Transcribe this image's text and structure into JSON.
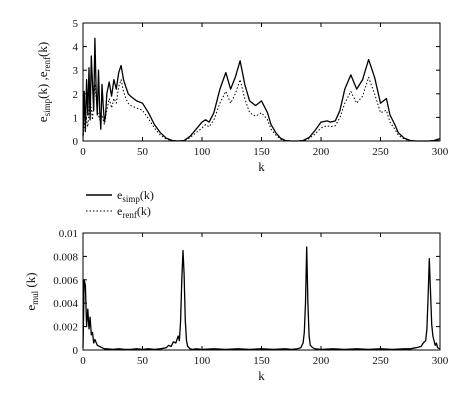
{
  "chart_data": [
    {
      "type": "line",
      "xlabel": "k",
      "ylabel": {
        "base1": "e",
        "sub1": "simp",
        "mid": "(k) ,e",
        "sub2": "renf",
        "end": "(k)"
      },
      "xlim": [
        0,
        300
      ],
      "ylim": [
        0,
        5
      ],
      "xticks": [
        "0",
        "50",
        "100",
        "150",
        "200",
        "250",
        "300"
      ],
      "yticks": [
        "0",
        "1",
        "2",
        "3",
        "4",
        "5"
      ],
      "legend": {
        "placement": "below",
        "entries": [
          {
            "base": "e",
            "sub": "simp",
            "end": "(k)",
            "style": "solid"
          },
          {
            "base": "e",
            "sub": "renf",
            "end": "(k)",
            "style": "dotted"
          }
        ]
      },
      "series": [
        {
          "style": "solid",
          "x": [
            0,
            1,
            2,
            3,
            4,
            5,
            6,
            7,
            8,
            9,
            10,
            11,
            12,
            13,
            14,
            15,
            16,
            17,
            18,
            19,
            20,
            22,
            24,
            26,
            28,
            30,
            32,
            34,
            36,
            38,
            40,
            45,
            50,
            55,
            60,
            65,
            70,
            75,
            80,
            85,
            90,
            95,
            100,
            103,
            106,
            110,
            115,
            120,
            124,
            128,
            132,
            136,
            140,
            145,
            150,
            155,
            158,
            162,
            166,
            170,
            175,
            180,
            185,
            190,
            195,
            200,
            205,
            208,
            212,
            216,
            220,
            225,
            230,
            235,
            240,
            245,
            250,
            255,
            258,
            262,
            265,
            270,
            275,
            280,
            285,
            290,
            295,
            300
          ],
          "y": [
            0.2,
            2.1,
            0.4,
            2.6,
            1.1,
            3.1,
            0.9,
            3.6,
            2.4,
            1.3,
            4.35,
            2.2,
            1.1,
            3.0,
            1.3,
            0.5,
            2.4,
            1.5,
            0.8,
            1.1,
            2.0,
            2.5,
            1.9,
            2.6,
            2.2,
            2.9,
            3.2,
            2.6,
            2.3,
            2.0,
            1.9,
            1.7,
            1.6,
            1.2,
            0.7,
            0.35,
            0.12,
            0.02,
            0.0,
            0.02,
            0.2,
            0.5,
            0.8,
            0.9,
            0.8,
            1.2,
            2.2,
            2.9,
            2.2,
            2.7,
            3.4,
            2.4,
            1.7,
            1.5,
            1.7,
            1.2,
            0.7,
            0.35,
            0.12,
            0.02,
            0.0,
            0.0,
            0.02,
            0.15,
            0.45,
            0.8,
            0.85,
            0.8,
            0.85,
            1.3,
            2.2,
            2.8,
            2.2,
            2.6,
            3.45,
            2.7,
            1.6,
            1.8,
            1.1,
            0.7,
            0.35,
            0.12,
            0.02,
            0.0,
            0.0,
            0.0,
            0.02,
            0.1
          ]
        },
        {
          "style": "dotted",
          "x": [
            0,
            2,
            4,
            6,
            8,
            10,
            12,
            14,
            16,
            18,
            20,
            22,
            24,
            26,
            28,
            30,
            32,
            34,
            36,
            38,
            40,
            45,
            50,
            55,
            60,
            65,
            70,
            75,
            80,
            85,
            90,
            95,
            100,
            103,
            106,
            110,
            115,
            120,
            124,
            128,
            132,
            136,
            140,
            145,
            150,
            155,
            158,
            162,
            166,
            170,
            175,
            180,
            185,
            190,
            195,
            200,
            205,
            208,
            212,
            216,
            220,
            225,
            230,
            235,
            240,
            245,
            250,
            255,
            258,
            262,
            265,
            270,
            275,
            280,
            285,
            290,
            295,
            300
          ],
          "y": [
            0.1,
            1.2,
            0.6,
            1.8,
            0.9,
            2.4,
            1.3,
            0.9,
            1.1,
            0.7,
            1.3,
            1.8,
            1.4,
            1.8,
            1.6,
            2.3,
            2.6,
            2.1,
            1.8,
            1.6,
            1.5,
            1.4,
            1.3,
            0.95,
            0.55,
            0.25,
            0.08,
            0.01,
            0.0,
            0.01,
            0.15,
            0.35,
            0.55,
            0.7,
            0.6,
            0.9,
            1.6,
            2.1,
            1.6,
            2.0,
            2.6,
            1.8,
            1.2,
            1.05,
            1.2,
            0.9,
            0.5,
            0.25,
            0.08,
            0.01,
            0.0,
            0.0,
            0.01,
            0.1,
            0.3,
            0.55,
            0.65,
            0.6,
            0.65,
            1.0,
            1.6,
            2.1,
            1.6,
            1.9,
            2.7,
            2.0,
            1.2,
            1.3,
            0.8,
            0.5,
            0.25,
            0.08,
            0.01,
            0.0,
            0.0,
            0.0,
            0.01,
            0.05
          ]
        }
      ]
    },
    {
      "type": "line",
      "xlabel": "k",
      "ylabel": {
        "base1": "e",
        "sub1": "mul",
        "mid": " (k)",
        "sub2": "",
        "end": ""
      },
      "xlim": [
        0,
        300
      ],
      "ylim": [
        0,
        0.01
      ],
      "xticks": [
        "0",
        "50",
        "100",
        "150",
        "200",
        "250",
        "300"
      ],
      "yticks": [
        "0",
        "0.002",
        "0.004",
        "0.006",
        "0.008",
        "0.01"
      ],
      "series": [
        {
          "style": "solid",
          "x": [
            0,
            1,
            2,
            3,
            4,
            5,
            6,
            7,
            8,
            9,
            10,
            12,
            14,
            16,
            18,
            20,
            25,
            30,
            35,
            40,
            45,
            50,
            55,
            60,
            65,
            70,
            72,
            74,
            76,
            78,
            80,
            81,
            82,
            83,
            84,
            85,
            86,
            87,
            88,
            90,
            92,
            95,
            100,
            110,
            120,
            130,
            140,
            150,
            160,
            170,
            175,
            180,
            183,
            185,
            186,
            187,
            188,
            189,
            190,
            191,
            193,
            195,
            200,
            210,
            220,
            230,
            240,
            250,
            260,
            270,
            275,
            280,
            284,
            286,
            288,
            289,
            290,
            291,
            292,
            293,
            294,
            295,
            296,
            297,
            298,
            300
          ],
          "y": [
            0.0002,
            0.006,
            0.0055,
            0.002,
            0.0035,
            0.0018,
            0.0028,
            0.0013,
            0.0015,
            0.0006,
            0.0009,
            0.0004,
            0.0003,
            0.0002,
            0.0001,
            0.0001,
            5e-05,
            0.0001,
            5e-05,
            5e-05,
            0.0001,
            5e-05,
            0.0001,
            5e-05,
            0.0001,
            0.0002,
            0.0004,
            0.0003,
            0.0007,
            0.0006,
            0.0012,
            0.0008,
            0.0025,
            0.006,
            0.0085,
            0.0065,
            0.0025,
            0.0008,
            0.0003,
            0.0001,
            5e-05,
            0.0001,
            5e-05,
            0.0001,
            5e-05,
            0.0001,
            5e-05,
            0.0001,
            5e-05,
            0.0001,
            5e-05,
            0.0001,
            0.0002,
            0.0006,
            0.0015,
            0.004,
            0.0088,
            0.004,
            0.0012,
            0.0004,
            0.0002,
            0.0001,
            5e-05,
            0.0001,
            5e-05,
            0.0001,
            5e-05,
            0.0001,
            5e-05,
            0.0001,
            0.0001,
            0.0002,
            0.0003,
            0.0006,
            0.0008,
            0.0018,
            0.0045,
            0.0078,
            0.005,
            0.0022,
            0.0012,
            0.0008,
            0.0004,
            0.0006,
            0.0002,
            0.0001
          ]
        }
      ]
    }
  ]
}
